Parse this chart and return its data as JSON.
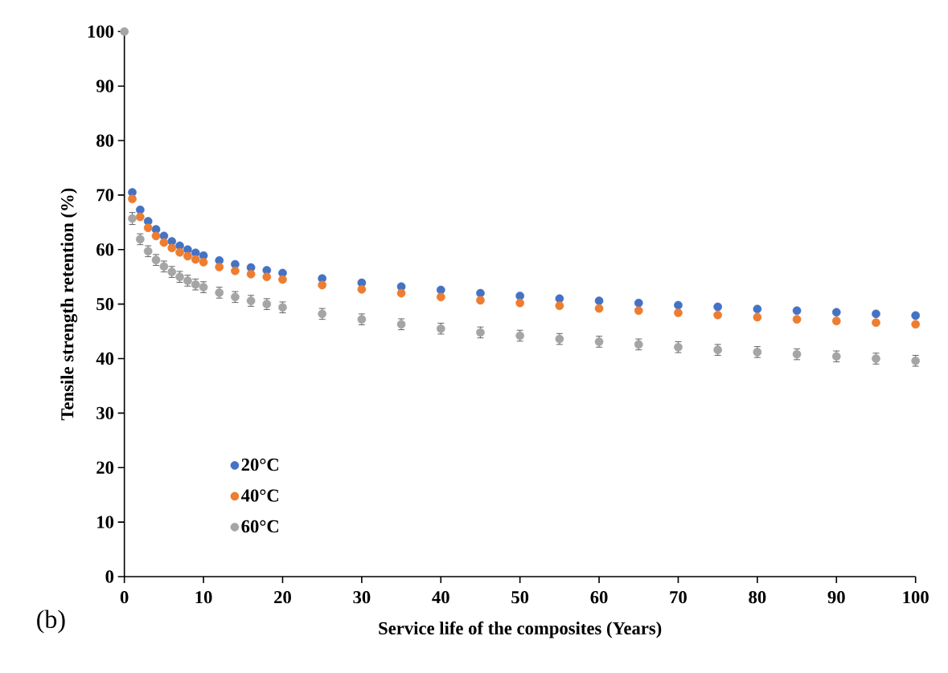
{
  "chart_data": {
    "type": "scatter",
    "xlabel": "Service life of the composites (Years)",
    "ylabel": "Tensile strength retention (%)",
    "annotations": [
      "(b)"
    ],
    "x": [
      0,
      1,
      2,
      3,
      4,
      5,
      6,
      7,
      8,
      9,
      10,
      12,
      14,
      16,
      18,
      20,
      25,
      30,
      35,
      40,
      45,
      50,
      55,
      60,
      65,
      70,
      75,
      80,
      85,
      90,
      95,
      100
    ],
    "series": [
      {
        "name": "20°C",
        "color": "#4472c4",
        "values": [
          null,
          70.5,
          67.3,
          65.2,
          63.7,
          62.5,
          61.5,
          60.7,
          60,
          59.4,
          58.9,
          58,
          57.3,
          56.7,
          56.2,
          55.7,
          54.7,
          53.9,
          53.2,
          52.6,
          52,
          51.5,
          51,
          50.6,
          50.2,
          49.8,
          49.5,
          49.1,
          48.8,
          48.5,
          48.2,
          47.9
        ]
      },
      {
        "name": "40°C",
        "color": "#ed7d31",
        "values": [
          null,
          69.3,
          66,
          64,
          62.5,
          61.3,
          60.3,
          59.5,
          58.8,
          58.2,
          57.7,
          56.8,
          56.1,
          55.5,
          55,
          54.5,
          53.5,
          52.7,
          52,
          51.3,
          50.7,
          50.2,
          49.7,
          49.2,
          48.8,
          48.4,
          48,
          47.6,
          47.2,
          46.9,
          46.6,
          46.3
        ]
      },
      {
        "name": "60°C",
        "color": "#a5a5a5",
        "values": [
          100,
          65.7,
          61.9,
          59.7,
          58.1,
          56.9,
          55.9,
          55,
          54.3,
          53.6,
          53.1,
          52.1,
          51.3,
          50.6,
          50,
          49.4,
          48.2,
          47.2,
          46.3,
          45.5,
          44.8,
          44.2,
          43.6,
          43.1,
          42.6,
          42.1,
          41.6,
          41.2,
          40.8,
          40.4,
          40,
          39.6
        ],
        "errors": [
          null,
          1.1,
          1,
          1,
          1,
          1,
          1,
          1,
          1,
          1,
          1,
          1,
          1,
          1,
          1,
          1,
          1,
          1,
          1,
          1,
          1,
          1,
          1,
          1,
          1,
          1,
          1,
          1,
          1,
          1,
          1,
          1
        ]
      }
    ],
    "xlim": [
      0,
      100
    ],
    "ylim": [
      0,
      100
    ],
    "xticks": [
      0,
      10,
      20,
      30,
      40,
      50,
      60,
      70,
      80,
      90,
      100
    ],
    "yticks": [
      0,
      10,
      20,
      30,
      40,
      50,
      60,
      70,
      80,
      90,
      100
    ],
    "grid": false,
    "legend": "bottom left"
  }
}
